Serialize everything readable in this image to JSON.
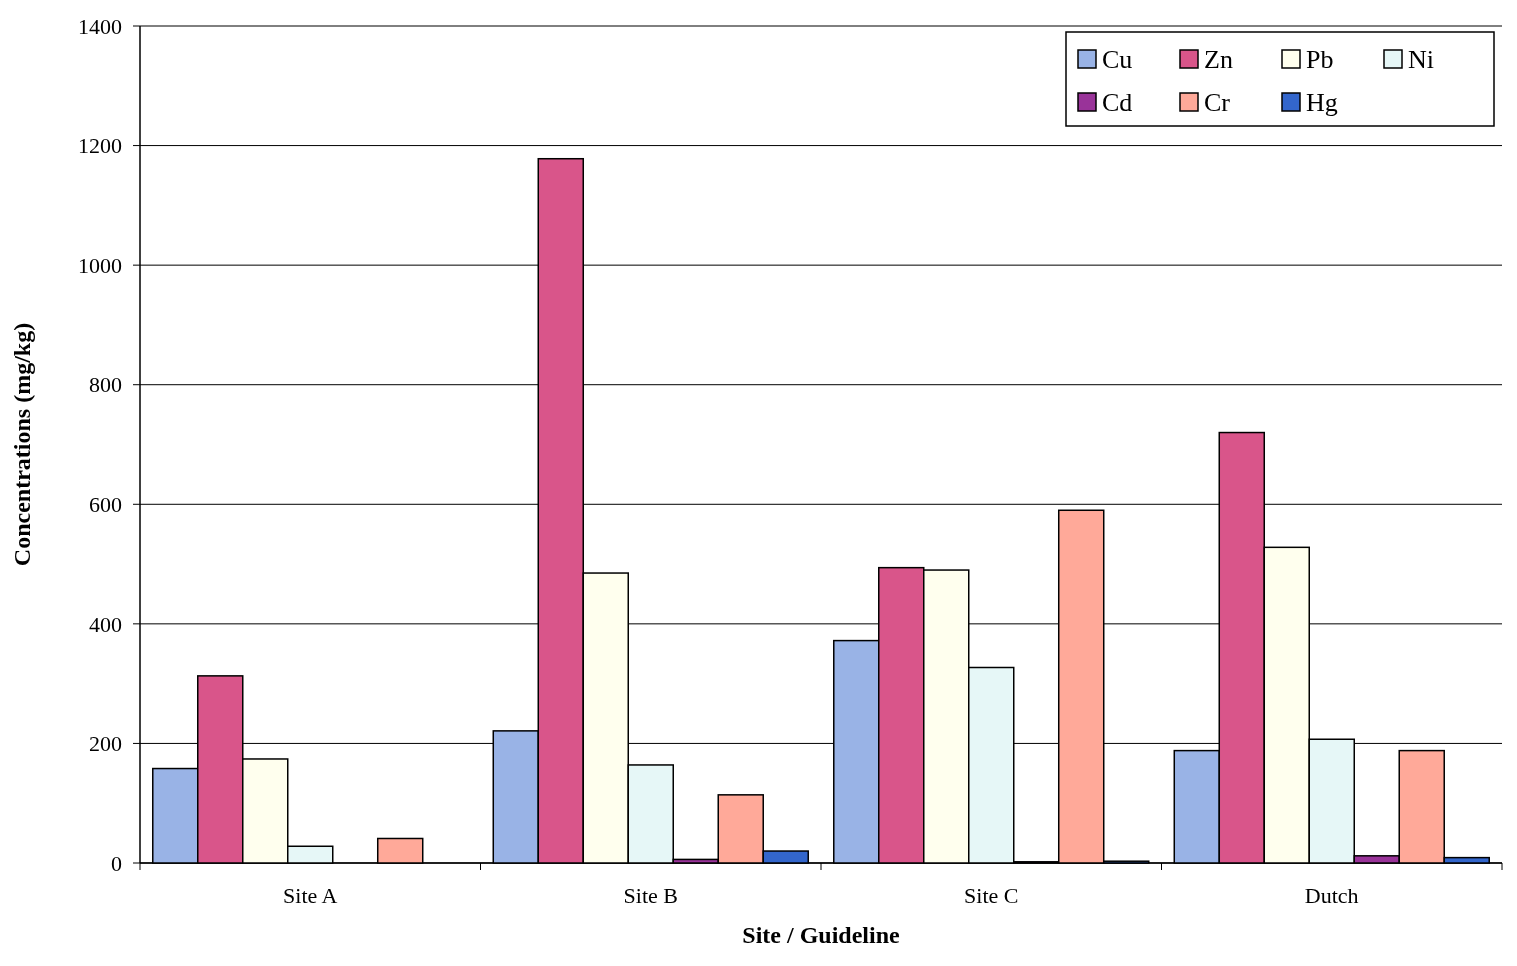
{
  "chart_data": {
    "type": "bar",
    "xlabel": "Site / Guideline",
    "ylabel": "Concentrations (mg/kg)",
    "categories": [
      "Site A",
      "Site B",
      "Site C",
      "Dutch"
    ],
    "series": [
      {
        "name": "Cu",
        "color": "#99b3e6",
        "values": [
          158,
          221,
          372,
          188
        ]
      },
      {
        "name": "Zn",
        "color": "#d9558a",
        "values": [
          313,
          1178,
          494,
          720
        ]
      },
      {
        "name": "Pb",
        "color": "#ffffee",
        "values": [
          174,
          485,
          490,
          528
        ]
      },
      {
        "name": "Ni",
        "color": "#e6f7f7",
        "values": [
          28,
          164,
          327,
          207
        ]
      },
      {
        "name": "Cd",
        "color": "#993399",
        "values": [
          0,
          6,
          2,
          12
        ]
      },
      {
        "name": "Cr",
        "color": "#ffa999",
        "values": [
          41,
          114,
          590,
          188
        ]
      },
      {
        "name": "Hg",
        "color": "#3366cc",
        "values": [
          0,
          20,
          3,
          9
        ]
      }
    ],
    "ylim": [
      0,
      1400
    ],
    "yticks": [
      0,
      200,
      400,
      600,
      800,
      1000,
      1200,
      1400
    ],
    "grid": "y",
    "legend": "top right"
  }
}
